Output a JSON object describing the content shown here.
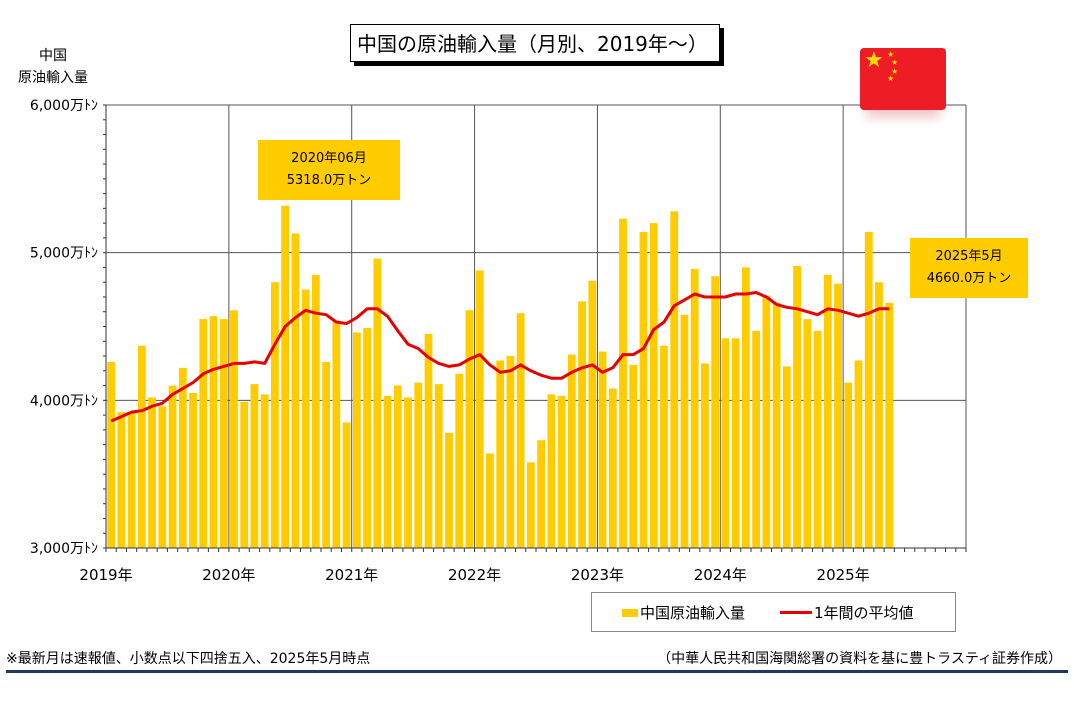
{
  "title": "中国の原油輸入量（月別、2019年～）",
  "ylabel": [
    "中国",
    "原油輸入量"
  ],
  "colors": {
    "bar": "#ffcc00",
    "line": "#e60000",
    "grid": "#555555",
    "footer_rule": "#1f3864"
  },
  "flag_icon": "china-flag-icon",
  "callouts": {
    "peak": {
      "line1": "2020年06月",
      "line2": "5318.0万トン"
    },
    "latest": {
      "line1": "2025年5月",
      "line2": "4660.0万トン"
    }
  },
  "legend": {
    "bar_label": "中国原油輸入量",
    "line_label": "1年間の平均値"
  },
  "footer_left": "※最新月は速報値、小数点以下四捨五入、2025年5月時点",
  "footer_right": "（中華人民共和国海関総署の資料を基に豊トラスティ証券作成）",
  "chart_data": {
    "type": "bar",
    "title": "中国の原油輸入量（月別、2019年～）",
    "ylabel": "中国 原油輸入量",
    "ylim": [
      3000,
      6000
    ],
    "yticks": [
      3000,
      4000,
      5000,
      6000
    ],
    "ytick_labels": [
      "3,000万ﾄﾝ",
      "4,000万ﾄﾝ",
      "5,000万ﾄﾝ",
      "6,000万ﾄﾝ"
    ],
    "year_labels": [
      "2019年",
      "2020年",
      "2021年",
      "2022年",
      "2023年",
      "2024年",
      "2025年"
    ],
    "axis_months": 84,
    "grid": true,
    "legend_position": "bottom-right",
    "categories": [
      "2019-01",
      "2019-02",
      "2019-03",
      "2019-04",
      "2019-05",
      "2019-06",
      "2019-07",
      "2019-08",
      "2019-09",
      "2019-10",
      "2019-11",
      "2019-12",
      "2020-01",
      "2020-02",
      "2020-03",
      "2020-04",
      "2020-05",
      "2020-06",
      "2020-07",
      "2020-08",
      "2020-09",
      "2020-10",
      "2020-11",
      "2020-12",
      "2021-01",
      "2021-02",
      "2021-03",
      "2021-04",
      "2021-05",
      "2021-06",
      "2021-07",
      "2021-08",
      "2021-09",
      "2021-10",
      "2021-11",
      "2021-12",
      "2022-01",
      "2022-02",
      "2022-03",
      "2022-04",
      "2022-05",
      "2022-06",
      "2022-07",
      "2022-08",
      "2022-09",
      "2022-10",
      "2022-11",
      "2022-12",
      "2023-01",
      "2023-02",
      "2023-03",
      "2023-04",
      "2023-05",
      "2023-06",
      "2023-07",
      "2023-08",
      "2023-09",
      "2023-10",
      "2023-11",
      "2023-12",
      "2024-01",
      "2024-02",
      "2024-03",
      "2024-04",
      "2024-05",
      "2024-06",
      "2024-07",
      "2024-08",
      "2024-09",
      "2024-10",
      "2024-11",
      "2024-12",
      "2025-01",
      "2025-02",
      "2025-03",
      "2025-04",
      "2025-05"
    ],
    "series": [
      {
        "name": "中国原油輸入量",
        "type": "bar",
        "values": [
          4260,
          3920,
          3920,
          4370,
          4020,
          3960,
          4100,
          4220,
          4050,
          4550,
          4570,
          4550,
          4610,
          3990,
          4110,
          4040,
          4800,
          5318,
          5130,
          4750,
          4850,
          4260,
          4540,
          3850,
          4460,
          4490,
          4960,
          4030,
          4100,
          4020,
          4120,
          4450,
          4110,
          3780,
          4180,
          4610,
          4880,
          3640,
          4270,
          4300,
          4590,
          3580,
          3730,
          4040,
          4030,
          4310,
          4670,
          4810,
          4330,
          4080,
          5230,
          4240,
          5140,
          5200,
          4370,
          5280,
          4580,
          4890,
          4250,
          4840,
          4420,
          4420,
          4900,
          4470,
          4710,
          4660,
          4230,
          4910,
          4550,
          4470,
          4850,
          4790,
          4120,
          4270,
          5140,
          4800,
          4660
        ]
      },
      {
        "name": "1年間の平均値",
        "type": "line",
        "values": [
          3860,
          3890,
          3920,
          3930,
          3960,
          3980,
          4040,
          4080,
          4120,
          4180,
          4210,
          4230,
          4250,
          4250,
          4260,
          4250,
          4380,
          4500,
          4560,
          4610,
          4590,
          4580,
          4530,
          4520,
          4560,
          4620,
          4620,
          4570,
          4470,
          4380,
          4350,
          4290,
          4250,
          4230,
          4240,
          4280,
          4310,
          4240,
          4190,
          4200,
          4240,
          4200,
          4170,
          4150,
          4150,
          4190,
          4220,
          4240,
          4190,
          4220,
          4310,
          4310,
          4350,
          4480,
          4530,
          4640,
          4680,
          4720,
          4700,
          4700,
          4700,
          4720,
          4720,
          4730,
          4700,
          4650,
          4630,
          4620,
          4600,
          4580,
          4620,
          4610,
          4590,
          4570,
          4590,
          4620,
          4620
        ]
      }
    ]
  }
}
